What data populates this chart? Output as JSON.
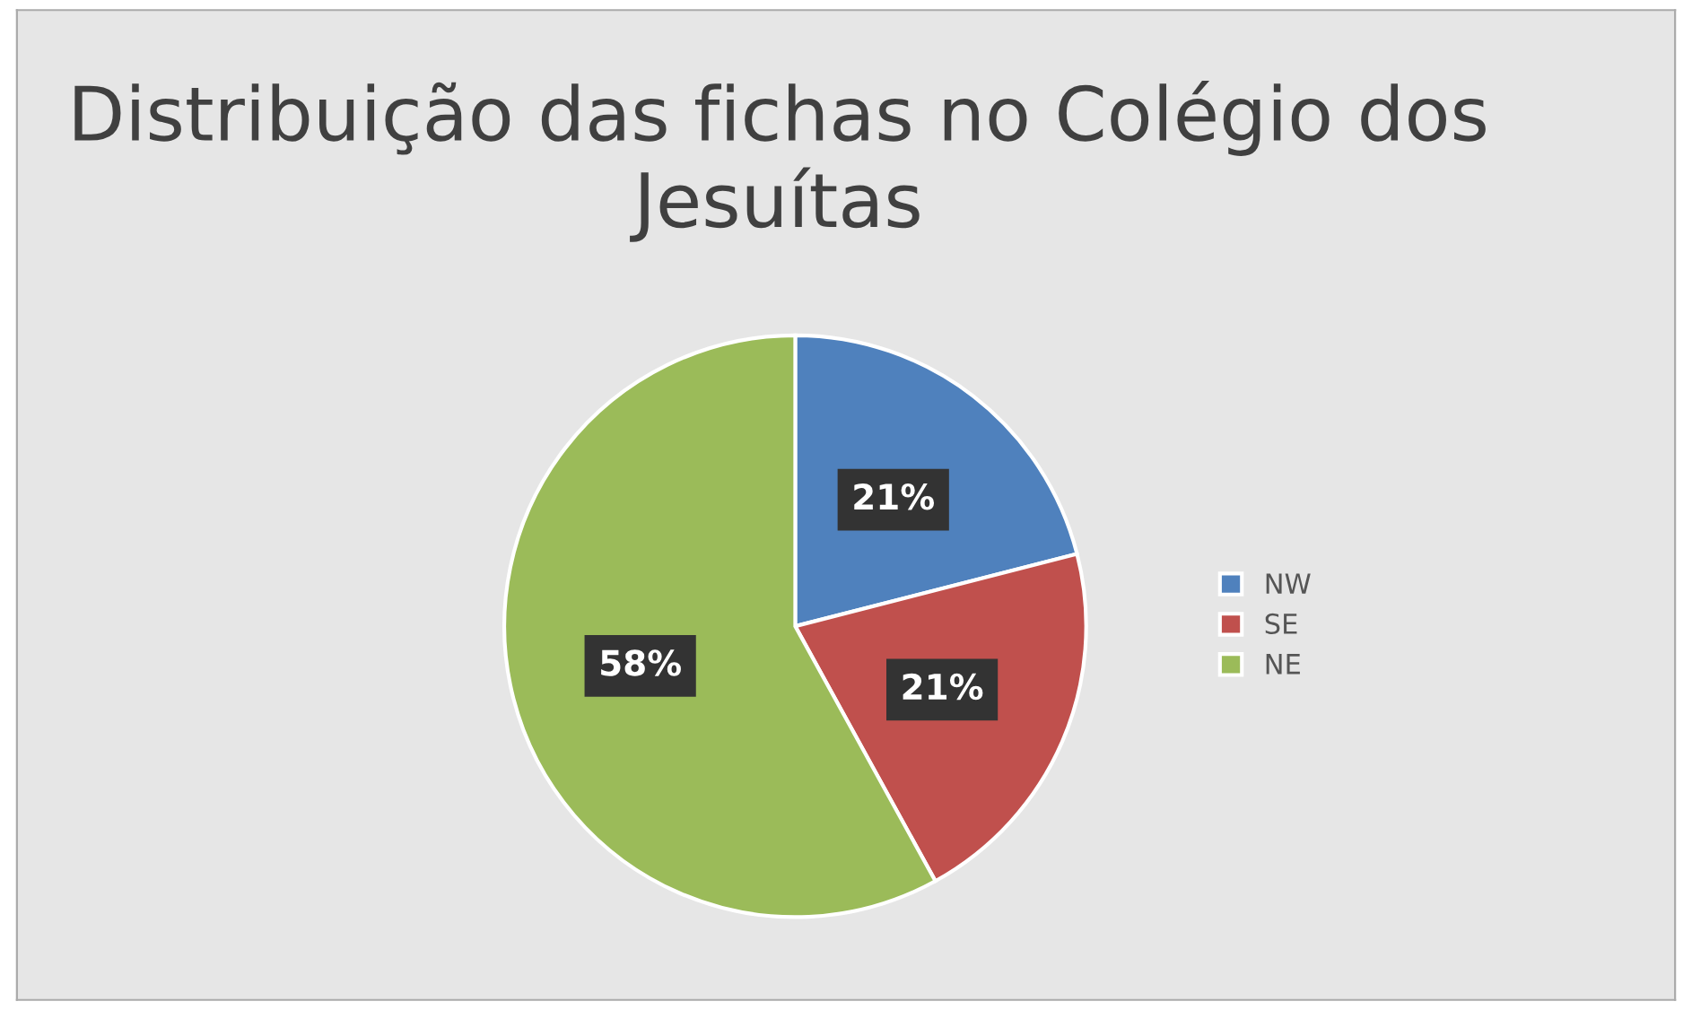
{
  "chart_data": {
    "type": "pie",
    "title": "Distribuição das fichas no Colégio dos Jesuítas",
    "categories": [
      "NW",
      "SE",
      "NE"
    ],
    "values": [
      21,
      21,
      58
    ],
    "colors": [
      "#4f81bd",
      "#c0504d",
      "#9bbb59"
    ],
    "value_labels": [
      "21%",
      "21%",
      "58%"
    ],
    "legend": "right"
  }
}
